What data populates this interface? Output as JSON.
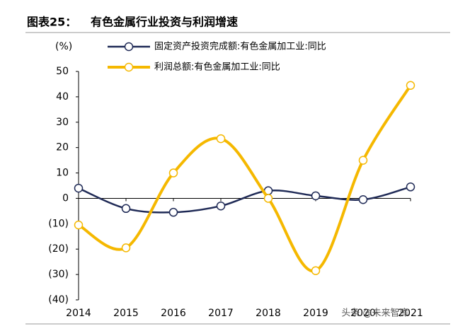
{
  "chart_data": {
    "type": "line",
    "title_label": "图表25：",
    "title": "有色金属行业投资与利润增速",
    "y_label": "(%)",
    "categories": [
      "2014",
      "2015",
      "2016",
      "2017",
      "2018",
      "2019",
      "2020",
      "2021"
    ],
    "series": [
      {
        "name": "固定资产投资完成额:有色金属加工业:同比",
        "color": "#1f2a56",
        "values": [
          4,
          -4,
          -5.5,
          -3,
          3,
          1,
          -0.5,
          4.5
        ]
      },
      {
        "name": "利润总额:有色金属加工业:同比",
        "color": "#f5b800",
        "values": [
          -10.5,
          -19.5,
          10,
          23.5,
          0,
          -28.5,
          15,
          44.5
        ]
      }
    ],
    "ylim": [
      -40,
      50
    ],
    "yticks": [
      50,
      40,
      30,
      20,
      10,
      0,
      {
        "value": -10,
        "label": "(10)"
      },
      {
        "value": -20,
        "label": "(20)"
      },
      {
        "value": -30,
        "label": "(30)"
      },
      {
        "value": -40,
        "label": "(40)"
      }
    ],
    "smooth": true,
    "watermark": "头条 @未来智库"
  }
}
